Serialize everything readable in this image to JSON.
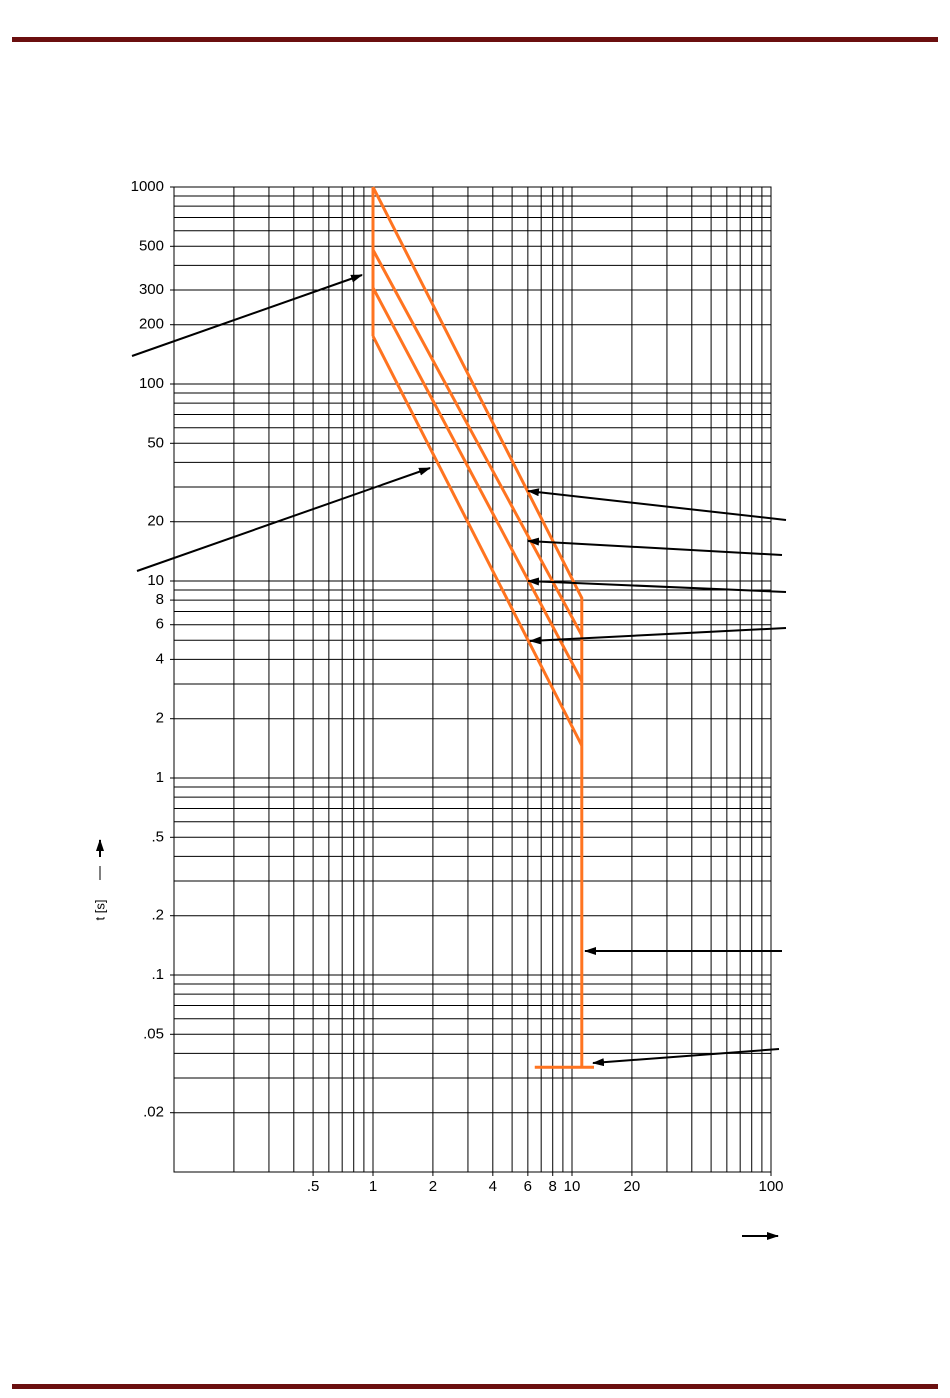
{
  "chart_data": {
    "type": "line",
    "axis_label_y": "t [s]",
    "log_x": true,
    "log_y": true,
    "grid": true,
    "xlim": [
      0.1,
      100
    ],
    "ylim": [
      0.01,
      1000
    ],
    "xticks": [
      {
        "value": 0.5,
        "label": ".5"
      },
      1,
      2,
      4,
      6,
      8,
      10,
      20,
      100
    ],
    "yticks": [
      1000,
      500,
      300,
      200,
      100,
      50,
      20,
      10,
      8,
      6,
      4,
      2,
      1,
      {
        "value": 0.5,
        "label": ".5"
      },
      {
        "value": 0.2,
        "label": ".2"
      },
      {
        "value": 0.1,
        "label": ".1"
      },
      {
        "value": 0.05,
        "label": ".05"
      },
      {
        "value": 0.02,
        "label": ".02"
      }
    ],
    "series": [
      {
        "color": "#ff7420",
        "x": [
          1,
          11.2,
          11.2
        ],
        "values": [
          1000,
          8.2,
          0.034
        ]
      },
      {
        "color": "#ff7420",
        "x": [
          1,
          11.2
        ],
        "values": [
          480,
          5.3
        ]
      },
      {
        "color": "#ff7420",
        "x": [
          1,
          11.2
        ],
        "values": [
          308,
          3.1
        ]
      },
      {
        "color": "#ff7420",
        "x": [
          1,
          11.2
        ],
        "values": [
          175,
          1.46
        ]
      },
      {
        "color": "#ff7420",
        "x": [
          1,
          1
        ],
        "values": [
          1000,
          175
        ]
      },
      {
        "color": "#ff7420",
        "x": [
          6.5,
          12.9
        ],
        "values": [
          0.034,
          0.034
        ]
      }
    ]
  }
}
